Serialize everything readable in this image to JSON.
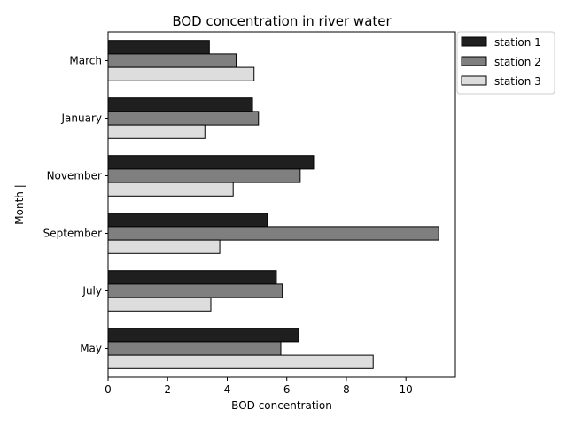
{
  "chart_data": {
    "type": "bar",
    "orientation": "horizontal",
    "title": "BOD concentration in river water",
    "xlabel": "BOD concentration",
    "ylabel": "Month |",
    "categories": [
      "May",
      "July",
      "September",
      "November",
      "January",
      "March"
    ],
    "series": [
      {
        "name": "station 1",
        "color": "#1f1f1f",
        "values": [
          6.4,
          5.65,
          5.35,
          6.9,
          4.85,
          3.4
        ]
      },
      {
        "name": "station 2",
        "color": "#7f7f7f",
        "values": [
          5.8,
          5.85,
          11.1,
          6.45,
          5.05,
          4.3
        ]
      },
      {
        "name": "station 3",
        "color": "#dddddd",
        "values": [
          8.9,
          3.45,
          3.75,
          4.2,
          3.25,
          4.9
        ]
      }
    ],
    "xlim": [
      0,
      11.66
    ],
    "xticks": [
      0,
      2,
      4,
      6,
      8,
      10
    ],
    "grid": false,
    "legend_position": "outside-top-right"
  }
}
